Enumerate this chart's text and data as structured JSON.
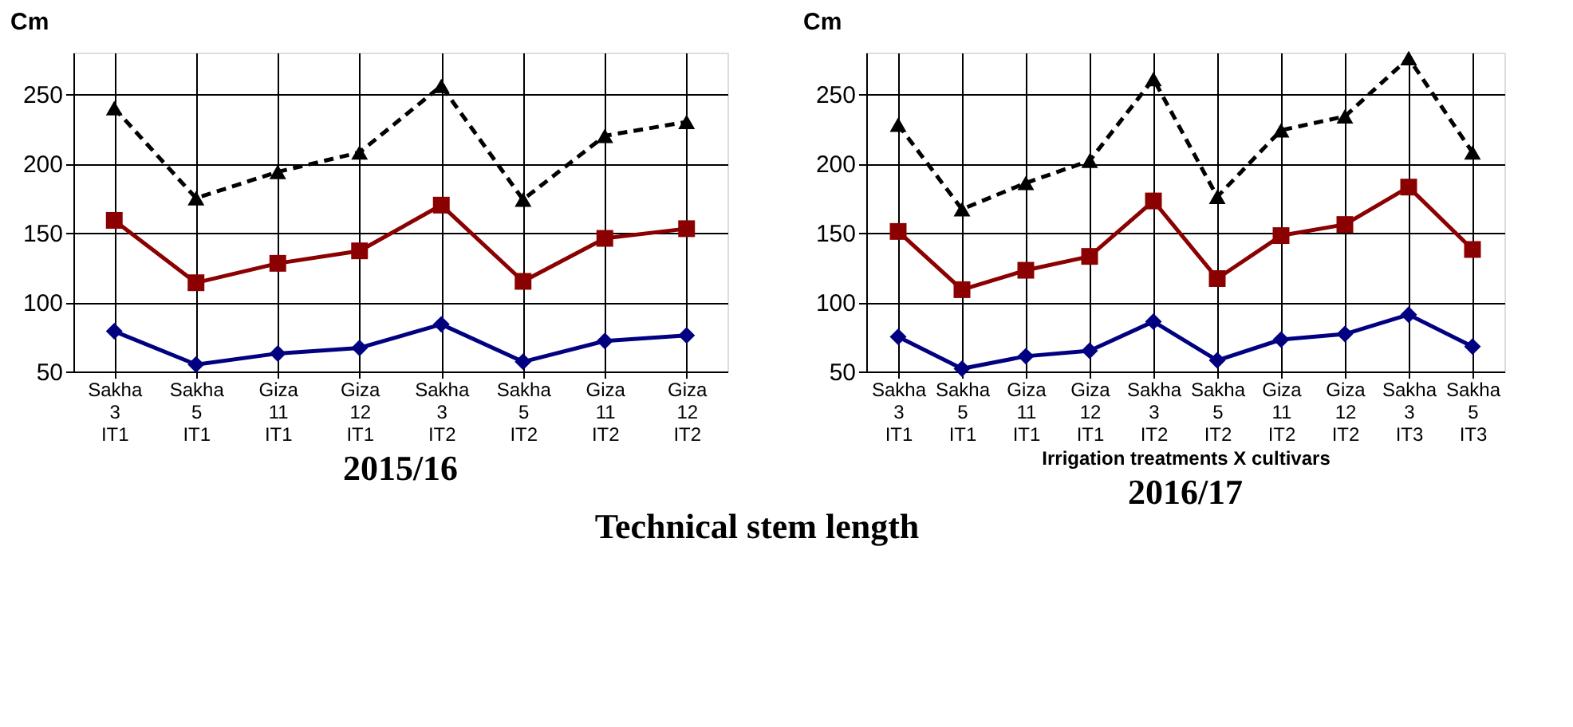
{
  "chart_data": [
    {
      "type": "line",
      "title": "2015/16",
      "ylabel": "Cm",
      "annotations": [
        "Technical stem length"
      ],
      "categories": [
        "Sakha 3 IT1",
        "Sakha 5 IT1",
        "Giza 11 IT1",
        "Giza 12 IT1",
        "Sakha 3 IT2",
        "Sakha 5 IT2",
        "Giza 11 IT2",
        "Giza 12 IT2"
      ],
      "series": [
        {
          "color": "#000000",
          "line_style": "dashed",
          "marker": "triangle",
          "values": [
            240,
            175,
            194,
            208,
            256,
            174,
            220,
            230
          ]
        },
        {
          "color": "#8b0000",
          "line_style": "solid",
          "marker": "square",
          "values": [
            159,
            114,
            128,
            137,
            170,
            115,
            146,
            153
          ]
        },
        {
          "color": "#000080",
          "line_style": "solid",
          "marker": "diamond",
          "values": [
            79,
            55,
            63,
            67,
            84,
            57,
            72,
            76
          ]
        }
      ],
      "ylim": [
        50,
        280
      ],
      "yticks": [
        50,
        100,
        150,
        200,
        250
      ],
      "grid": true
    },
    {
      "type": "line",
      "title": "2016/17",
      "ylabel": "Cm",
      "xlabel": "Irrigation treatments X cultivars",
      "categories": [
        "Sakha 3 IT1",
        "Sakha 5 IT1",
        "Giza 11 IT1",
        "Giza 12 IT1",
        "Sakha 3 IT2",
        "Sakha 5 IT2",
        "Giza 11 IT2",
        "Giza 12 IT2",
        "Sakha 3 IT3",
        "Sakha 5 IT3"
      ],
      "series": [
        {
          "color": "#000000",
          "line_style": "dashed",
          "marker": "triangle",
          "values": [
            228,
            167,
            186,
            202,
            261,
            176,
            224,
            234,
            276,
            208
          ]
        },
        {
          "color": "#8b0000",
          "line_style": "solid",
          "marker": "square",
          "values": [
            151,
            109,
            123,
            133,
            173,
            117,
            148,
            156,
            183,
            138
          ]
        },
        {
          "color": "#000080",
          "line_style": "solid",
          "marker": "diamond",
          "values": [
            75,
            52,
            61,
            65,
            86,
            58,
            73,
            77,
            91,
            68
          ]
        }
      ],
      "ylim": [
        50,
        280
      ],
      "yticks": [
        50,
        100,
        150,
        200,
        250
      ],
      "grid": true
    }
  ]
}
